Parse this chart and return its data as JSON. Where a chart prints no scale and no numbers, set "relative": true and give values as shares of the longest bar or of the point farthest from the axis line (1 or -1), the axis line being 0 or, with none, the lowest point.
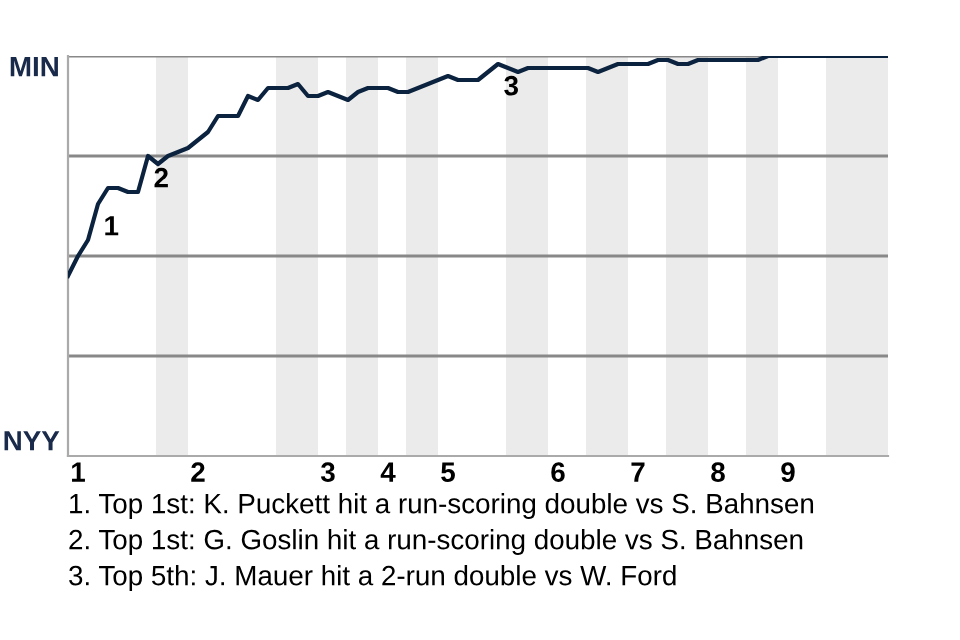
{
  "chart_data": {
    "type": "line",
    "relative": true,
    "categories": [
      null,
      "1",
      null,
      null,
      null,
      null,
      null,
      null,
      null,
      null,
      null,
      null,
      null,
      "2",
      null,
      null,
      null,
      null,
      null,
      null,
      null,
      null,
      null,
      null,
      null,
      null,
      "3",
      null,
      null,
      null,
      null,
      null,
      "4",
      null,
      null,
      null,
      null,
      null,
      "5",
      null,
      null,
      null,
      null,
      null,
      null,
      null,
      null,
      null,
      null,
      "6",
      null,
      null,
      null,
      null,
      null,
      null,
      null,
      "7",
      null,
      null,
      null,
      null,
      null,
      null,
      null,
      "8",
      null,
      null,
      null,
      null,
      null,
      null,
      "9",
      null,
      null,
      null,
      null,
      null,
      null,
      null,
      null,
      null,
      null
    ],
    "series": [
      {
        "color": "#0c2340",
        "values": [
          0.45,
          0.5,
          0.54,
          0.63,
          0.67,
          0.67,
          0.66,
          0.66,
          0.75,
          0.73,
          0.75,
          0.76,
          0.77,
          0.79,
          0.81,
          0.85,
          0.85,
          0.85,
          0.9,
          0.89,
          0.92,
          0.92,
          0.92,
          0.93,
          0.9,
          0.9,
          0.91,
          0.9,
          0.89,
          0.91,
          0.92,
          0.92,
          0.92,
          0.91,
          0.91,
          0.92,
          0.93,
          0.94,
          0.95,
          0.94,
          0.94,
          0.94,
          0.96,
          0.98,
          0.97,
          0.96,
          0.97,
          0.97,
          0.97,
          0.97,
          0.97,
          0.97,
          0.97,
          0.96,
          0.97,
          0.98,
          0.98,
          0.98,
          0.98,
          0.99,
          0.99,
          0.98,
          0.98,
          0.99,
          0.99,
          0.99,
          0.99,
          0.99,
          0.99,
          0.99,
          1.0,
          1.0,
          1.0,
          1.0,
          1.0,
          1.0,
          1.0,
          1.0,
          1.0,
          1.0,
          1.0,
          1.0,
          1.0
        ]
      }
    ],
    "legend": false,
    "marker": "none",
    "line_style": "solid",
    "ref_lines": [
      {
        "axis": "y",
        "value": 0.25,
        "color": "#888888"
      },
      {
        "axis": "y",
        "value": 0.5,
        "color": "#888888"
      },
      {
        "axis": "y",
        "value": 0.75,
        "color": "#888888"
      },
      {
        "axis": "y",
        "value": 1.0,
        "color": "#888888"
      }
    ],
    "annotations": [
      "MIN",
      "NYY",
      {
        "text": "1",
        "y": 0.63
      },
      {
        "text": "2",
        "y": 0.75
      },
      {
        "text": "3",
        "y": 0.98
      },
      "1. Top 1st: K. Puckett hit a run-scoring double vs S. Bahnsen",
      "2. Top 1st: G. Goslin hit a run-scoring double vs S. Bahnsen",
      "3. Top 5th: J. Mauer hit a 2-run double vs W. Ford"
    ]
  }
}
